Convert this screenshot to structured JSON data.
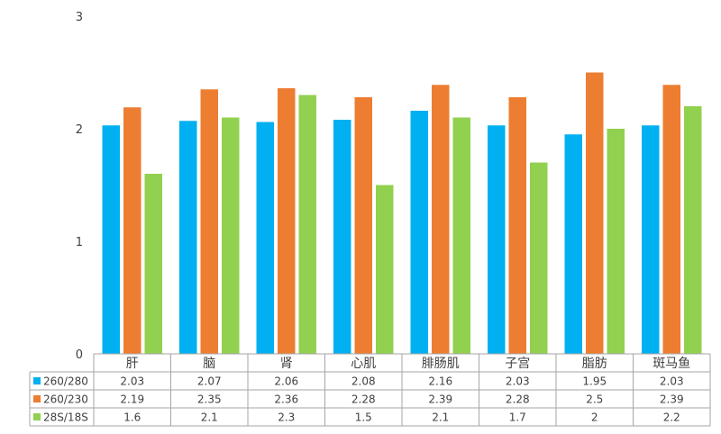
{
  "chart_data": {
    "type": "bar",
    "categories": [
      "肝",
      "脑",
      "肾",
      "心肌",
      "腓肠肌",
      "子宫",
      "脂肪",
      "斑马鱼"
    ],
    "series": [
      {
        "name": "260/280",
        "color": "#00B0F0",
        "values": [
          2.03,
          2.07,
          2.06,
          2.08,
          2.16,
          2.03,
          1.95,
          2.03
        ]
      },
      {
        "name": "260/230",
        "color": "#ED7D31",
        "values": [
          2.19,
          2.35,
          2.36,
          2.28,
          2.39,
          2.28,
          2.5,
          2.39
        ]
      },
      {
        "name": "28S/18S",
        "color": "#92D050",
        "values": [
          1.6,
          2.1,
          2.3,
          1.5,
          2.1,
          1.7,
          2,
          2.2
        ]
      }
    ],
    "ylim": [
      0,
      3
    ],
    "yticks": [
      0,
      1,
      2,
      3
    ],
    "grid": false,
    "legend": "data-table"
  }
}
